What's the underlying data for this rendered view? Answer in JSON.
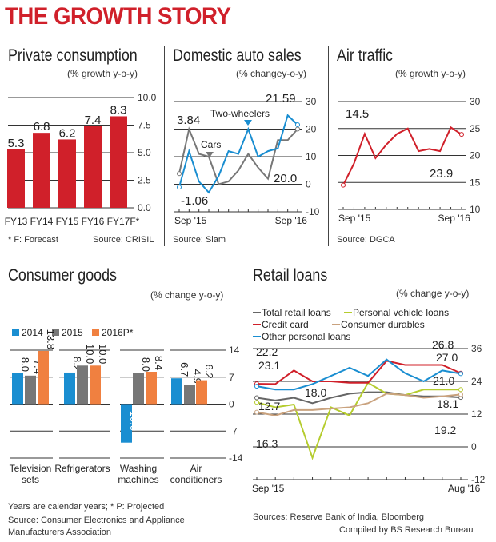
{
  "title": "THE GROWTH STORY",
  "colors": {
    "red": "#d0202a",
    "blue": "#1a8ed1",
    "gray": "#777777",
    "orange": "#f08040",
    "green": "#b5cc2e",
    "tan": "#c9a27e",
    "darkgray": "#666666"
  },
  "chart_data": [
    {
      "type": "bar",
      "title": "Private consumption",
      "ylabel": "(% growth y-o-y)",
      "categories": [
        "FY13",
        "FY14",
        "FY15",
        "FY16",
        "FY17F*"
      ],
      "values": [
        5.3,
        6.8,
        6.2,
        7.4,
        8.3
      ],
      "labels": [
        "5.3",
        "6.8",
        "6.2",
        "7.4",
        "8.3"
      ],
      "ylim": [
        0,
        10
      ],
      "yticks": [
        "10.0",
        "7.5",
        "5.0",
        "2.5",
        "0.0"
      ],
      "ytick_values": [
        10,
        7.5,
        5,
        2.5,
        0
      ],
      "footnote": "* F: Forecast",
      "source": "Source: CRISIL",
      "color": "#d0202a"
    },
    {
      "type": "line",
      "title": "Domestic auto sales",
      "ylabel": "(% changey-o-y)",
      "xticks": [
        "Sep '15",
        "Sep '16"
      ],
      "ylim": [
        -10,
        30
      ],
      "yticks": [
        "30",
        "20",
        "10",
        "0",
        "-10"
      ],
      "ytick_values": [
        30,
        20,
        10,
        0,
        -10
      ],
      "series": [
        {
          "name": "Cars",
          "color": "#777777",
          "values": [
            3.84,
            20,
            11,
            10,
            0,
            1,
            5,
            11,
            6,
            2,
            16,
            16,
            20.0
          ]
        },
        {
          "name": "Two-wheelers",
          "color": "#1a8ed1",
          "values": [
            -1.06,
            12,
            1,
            -3,
            3,
            12,
            11,
            20,
            10,
            12,
            13,
            25,
            21.59
          ]
        }
      ],
      "annotations": [
        "3.84",
        "-1.06",
        "21.59",
        "20.0"
      ],
      "source": "Source: Siam"
    },
    {
      "type": "line",
      "title": "Air traffic",
      "ylabel": "(% growth y-o-y)",
      "xticks": [
        "Sep '15",
        "Sep '16"
      ],
      "ylim": [
        10,
        30
      ],
      "yticks": [
        "30",
        "25",
        "20",
        "15",
        "10"
      ],
      "ytick_values": [
        30,
        25,
        20,
        15,
        10
      ],
      "series": [
        {
          "color": "#d0202a",
          "values": [
            14.5,
            18.5,
            24,
            19.5,
            22,
            24,
            25,
            20.8,
            21.2,
            20.8,
            25.2,
            23.9
          ]
        }
      ],
      "annotations": [
        "14.5",
        "23.9"
      ],
      "source": "Source: DGCA"
    },
    {
      "type": "bar",
      "title": "Consumer goods",
      "ylabel": "(% change y-o-y)",
      "categories": [
        "Television sets",
        "Refrigerators",
        "Washing machines",
        "Air conditioners"
      ],
      "series": [
        {
          "name": "2014",
          "color": "#1a8ed1",
          "values": [
            8.0,
            8.2,
            -10.0,
            6.7
          ],
          "labels": [
            "8.0",
            "8.2",
            "-10.0",
            "6.7"
          ]
        },
        {
          "name": "2015",
          "color": "#777777",
          "values": [
            7.4,
            10.0,
            8.0,
            4.9
          ],
          "labels": [
            "7.4",
            "10.0",
            "8.0",
            "4.9"
          ]
        },
        {
          "name": "2016P*",
          "color": "#f08040",
          "values": [
            13.8,
            10.0,
            8.4,
            6.2
          ],
          "labels": [
            "13.8",
            "10.0",
            "8.4",
            "6.2"
          ]
        }
      ],
      "ylim": [
        -14,
        14
      ],
      "yticks": [
        "14",
        "7",
        "0",
        "-7",
        "-14"
      ],
      "ytick_values": [
        14,
        7,
        0,
        -7,
        -14
      ],
      "footnote": "Years are calendar years; * P: Projected",
      "source": "Source: Consumer Electronics and Appliance Manufacturers Association"
    },
    {
      "type": "line",
      "title": "Retail loans",
      "ylabel": "(% change y-o-y)",
      "xticks": [
        "Sep '15",
        "Aug '16"
      ],
      "ylim": [
        -12,
        36
      ],
      "yticks": [
        "36",
        "24",
        "12",
        "0",
        "-12"
      ],
      "ytick_values": [
        36,
        24,
        12,
        0,
        -12
      ],
      "series": [
        {
          "name": "Total retail loans",
          "color": "#666666",
          "values": [
            18.0,
            17,
            18,
            16,
            18,
            19.5,
            20,
            20,
            19,
            18.5,
            18.5,
            18.1
          ]
        },
        {
          "name": "Personal vehicle loans",
          "color": "#b5cc2e",
          "values": [
            16.3,
            14.5,
            15.5,
            -4,
            14.5,
            11.5,
            23.5,
            19.5,
            19,
            21,
            21,
            21.0
          ]
        },
        {
          "name": "Credit card",
          "color": "#d0202a",
          "values": [
            23.1,
            23,
            28,
            24,
            24,
            23.5,
            23.5,
            31.5,
            30,
            30,
            30,
            27.0
          ]
        },
        {
          "name": "Consumer durables",
          "color": "#c9a27e",
          "values": [
            12.7,
            11.5,
            13.5,
            13.5,
            14,
            14.5,
            16,
            19.5,
            19,
            18,
            18.5,
            19.2
          ]
        },
        {
          "name": "Other personal loans",
          "color": "#1a8ed1",
          "values": [
            22.2,
            21,
            21,
            23,
            26,
            29,
            26,
            32,
            27,
            24,
            28,
            26.8
          ]
        }
      ],
      "annotations": [
        "22.2",
        "23.1",
        "18.0",
        "12.7",
        "16.3",
        "26.8",
        "27.0",
        "21.0",
        "18.1",
        "19.2"
      ],
      "source": "Sources: Reserve Bank of India, Bloomberg",
      "credit": "Compiled by BS Research Bureau"
    }
  ]
}
